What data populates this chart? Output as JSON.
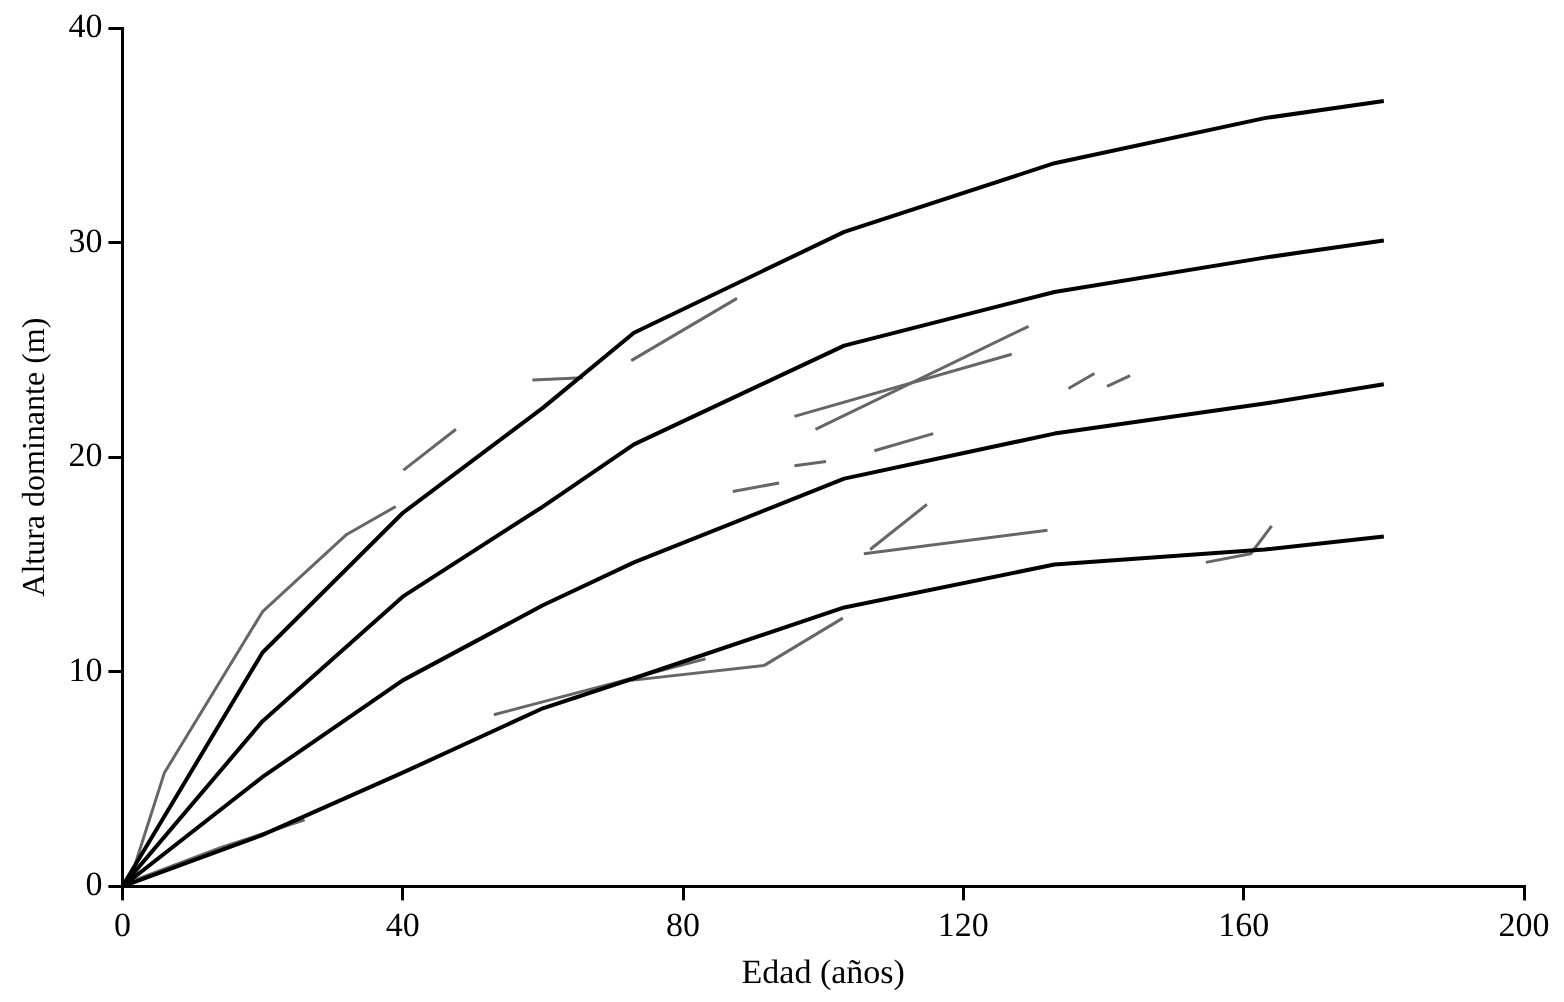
{
  "chart_data": {
    "type": "line",
    "xlabel": "Edad (años)",
    "ylabel": "Altura dominante (m)",
    "xlim": [
      0,
      200
    ],
    "xticks": [
      0,
      40,
      80,
      120,
      160,
      200
    ],
    "ylim": [
      0,
      40
    ],
    "yticks": [
      0,
      10,
      20,
      30,
      40
    ],
    "grid": false,
    "legend": false,
    "marker": "none",
    "line_style": "solid",
    "series": [
      {
        "color": "#666666",
        "x": [
          1,
          6,
          20,
          32,
          39
        ],
        "values": [
          0.2,
          5.3,
          12.8,
          16.4,
          17.7
        ]
      },
      {
        "color": "#666666",
        "x": [
          1,
          14,
          26
        ],
        "values": [
          0.2,
          1.8,
          3.1
        ]
      },
      {
        "color": "#666666",
        "x": [
          40.1,
          47.6
        ],
        "values": [
          19.4,
          21.3
        ]
      },
      {
        "color": "#666666",
        "x": [
          58.5,
          65.7
        ],
        "values": [
          23.6,
          23.7
        ]
      },
      {
        "color": "#666666",
        "x": [
          53,
          83.2
        ],
        "values": [
          8.0,
          10.6
        ]
      },
      {
        "color": "#666666",
        "x": [
          72.6,
          87.7
        ],
        "values": [
          24.5,
          27.4
        ]
      },
      {
        "color": "#666666",
        "x": [
          98.9,
          129.3
        ],
        "values": [
          21.3,
          26.1
        ]
      },
      {
        "color": "#666666",
        "x": [
          95.9,
          126.9
        ],
        "values": [
          21.9,
          24.8
        ]
      },
      {
        "color": "#666666",
        "x": [
          105.8,
          132
        ],
        "values": [
          15.5,
          16.6
        ]
      },
      {
        "color": "#666666",
        "x": [
          106.7,
          114.8
        ],
        "values": [
          15.7,
          17.8
        ]
      },
      {
        "color": "#666666",
        "x": [
          72.6,
          91.6,
          102.8
        ],
        "values": [
          9.6,
          10.3,
          12.5
        ]
      },
      {
        "color": "#666666",
        "x": [
          87.1,
          93.7
        ],
        "values": [
          18.4,
          18.8
        ]
      },
      {
        "color": "#666666",
        "x": [
          95.9,
          100.4
        ],
        "values": [
          19.6,
          19.8
        ]
      },
      {
        "color": "#666666",
        "x": [
          107.3,
          115.7
        ],
        "values": [
          20.3,
          21.1
        ]
      },
      {
        "color": "#666666",
        "x": [
          135,
          138.7
        ],
        "values": [
          23.2,
          23.9
        ]
      },
      {
        "color": "#666666",
        "x": [
          140.5,
          143.8
        ],
        "values": [
          23.3,
          23.8
        ]
      },
      {
        "color": "#666666",
        "x": [
          154.6,
          161,
          164
        ],
        "values": [
          15.1,
          15.5,
          16.8
        ]
      },
      {
        "color": "#000000",
        "x": [
          0,
          20,
          40,
          60,
          73,
          103,
          133,
          163,
          180
        ],
        "values": [
          0,
          10.9,
          17.4,
          22.3,
          25.8,
          30.5,
          33.7,
          35.8,
          36.6
        ]
      },
      {
        "color": "#000000",
        "x": [
          0,
          20,
          40,
          60,
          73,
          103,
          133,
          163,
          180
        ],
        "values": [
          0,
          7.7,
          13.5,
          17.7,
          20.6,
          25.2,
          27.7,
          29.3,
          30.1
        ]
      },
      {
        "color": "#000000",
        "x": [
          0,
          20,
          40,
          60,
          73,
          103,
          133,
          163,
          180
        ],
        "values": [
          0,
          5.1,
          9.6,
          13.1,
          15.1,
          19.0,
          21.1,
          22.5,
          23.4
        ]
      },
      {
        "color": "#000000",
        "x": [
          0,
          20,
          40,
          60,
          73,
          103,
          133,
          163,
          180
        ],
        "values": [
          0,
          2.4,
          5.3,
          8.3,
          9.7,
          13.0,
          15.0,
          15.7,
          16.3
        ]
      }
    ]
  }
}
